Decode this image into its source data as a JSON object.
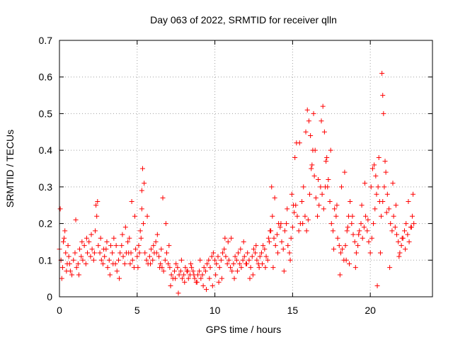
{
  "chart_data": {
    "type": "scatter",
    "title": "Day 063 of 2022, SRMTID for receiver qlln",
    "xlabel": "GPS time / hours",
    "ylabel": "SRMTID / TECUs",
    "xlim": [
      0,
      24
    ],
    "ylim": [
      0,
      0.7
    ],
    "x_ticks": [
      0,
      5,
      10,
      15,
      20
    ],
    "y_ticks": [
      0,
      0.1,
      0.2,
      0.3,
      0.4,
      0.5,
      0.6,
      0.7
    ],
    "x_tick_labels": [
      "0",
      "5",
      "10",
      "15",
      "20"
    ],
    "y_tick_labels": [
      "0",
      "0.1",
      "0.2",
      "0.3",
      "0.4",
      "0.5",
      "0.6",
      "0.7"
    ],
    "grid": true,
    "marker": "+",
    "series_color": "#ff0000",
    "series": [
      {
        "name": "SRMTID",
        "x": [
          0.0,
          0.1,
          0.2,
          0.3,
          0.4,
          0.5,
          0.6,
          0.7,
          0.8,
          0.9,
          1.0,
          1.1,
          1.2,
          1.3,
          1.4,
          1.5,
          1.6,
          1.7,
          1.8,
          1.9,
          2.0,
          2.1,
          2.2,
          2.3,
          2.4,
          2.5,
          2.6,
          2.7,
          2.8,
          2.9,
          3.0,
          3.1,
          3.2,
          3.3,
          3.4,
          3.5,
          3.6,
          3.7,
          3.8,
          3.9,
          4.0,
          4.1,
          4.2,
          4.3,
          4.4,
          4.5,
          4.6,
          4.7,
          4.8,
          4.9,
          5.0,
          5.1,
          5.2,
          5.3,
          5.4,
          5.5,
          5.6,
          5.7,
          5.8,
          5.9,
          6.0,
          6.1,
          6.2,
          6.3,
          6.4,
          6.5,
          6.6,
          6.7,
          6.8,
          6.9,
          7.0,
          7.1,
          7.2,
          7.3,
          7.4,
          7.5,
          7.6,
          7.7,
          7.8,
          7.9,
          8.0,
          8.1,
          8.2,
          8.3,
          8.4,
          8.5,
          8.6,
          8.7,
          8.8,
          8.9,
          9.0,
          9.1,
          9.2,
          9.3,
          9.4,
          9.5,
          9.6,
          9.7,
          9.8,
          9.9,
          10.0,
          10.1,
          10.2,
          10.3,
          10.4,
          10.5,
          10.6,
          10.7,
          10.8,
          10.9,
          11.0,
          11.1,
          11.2,
          11.3,
          11.4,
          11.5,
          11.6,
          11.7,
          11.8,
          11.9,
          12.0,
          12.1,
          12.2,
          12.3,
          12.4,
          12.5,
          12.6,
          12.7,
          12.8,
          12.9,
          13.0,
          13.1,
          13.2,
          13.3,
          13.4,
          13.5,
          13.6,
          13.7,
          13.8,
          13.9,
          14.0,
          14.1,
          14.2,
          14.3,
          14.4,
          14.5,
          14.6,
          14.7,
          14.8,
          14.9,
          15.0,
          15.1,
          15.2,
          15.3,
          15.4,
          15.5,
          15.6,
          15.7,
          15.8,
          15.9,
          16.0,
          16.1,
          16.2,
          16.3,
          16.4,
          16.5,
          16.6,
          16.7,
          16.8,
          16.9,
          17.0,
          17.1,
          17.2,
          17.3,
          17.4,
          17.5,
          17.6,
          17.7,
          17.8,
          17.9,
          18.0,
          18.1,
          18.2,
          18.3,
          18.4,
          18.5,
          18.6,
          18.7,
          18.8,
          18.9,
          19.0,
          19.1,
          19.2,
          19.3,
          19.4,
          19.5,
          19.6,
          19.7,
          19.8,
          19.9,
          20.0,
          20.1,
          20.2,
          20.3,
          20.4,
          20.5,
          20.6,
          20.7,
          20.8,
          20.9,
          21.0,
          21.1,
          21.2,
          21.3,
          21.4,
          21.5,
          21.6,
          21.7,
          21.8,
          21.9,
          22.0,
          22.1,
          22.2,
          22.3,
          22.4,
          22.5,
          22.6,
          22.7,
          22.8,
          0.05,
          0.15,
          0.25,
          0.35,
          0.45,
          0.55,
          0.65,
          1.05,
          1.25,
          1.45,
          1.75,
          2.05,
          2.25,
          2.35,
          2.45,
          2.65,
          2.85,
          3.05,
          3.25,
          3.45,
          3.65,
          3.85,
          4.05,
          4.25,
          4.45,
          4.55,
          4.65,
          4.85,
          5.05,
          5.15,
          5.25,
          5.3,
          5.35,
          5.45,
          5.65,
          5.85,
          6.05,
          6.25,
          6.45,
          6.55,
          6.65,
          6.85,
          7.05,
          7.15,
          7.45,
          7.65,
          7.85,
          8.05,
          8.25,
          8.45,
          8.65,
          8.85,
          9.05,
          9.25,
          9.45,
          9.65,
          9.85,
          10.05,
          10.25,
          10.45,
          10.65,
          10.85,
          11.05,
          11.25,
          11.45,
          11.65,
          11.85,
          12.05,
          12.25,
          12.45,
          12.65,
          12.85,
          13.05,
          13.25,
          13.45,
          13.55,
          13.65,
          13.75,
          13.85,
          14.05,
          14.25,
          14.45,
          14.65,
          14.85,
          14.95,
          15.05,
          15.15,
          15.25,
          15.45,
          15.65,
          15.85,
          15.95,
          16.05,
          16.15,
          16.25,
          16.35,
          16.45,
          16.65,
          16.85,
          16.95,
          17.05,
          17.15,
          17.25,
          17.45,
          17.65,
          17.85,
          18.05,
          18.15,
          18.35,
          18.45,
          18.55,
          18.65,
          18.85,
          19.05,
          19.25,
          19.45,
          19.65,
          19.85,
          20.05,
          20.15,
          20.25,
          20.35,
          20.45,
          20.55,
          20.65,
          20.75,
          20.8,
          20.85,
          20.95,
          21.05,
          21.25,
          21.45,
          21.65,
          21.85,
          22.05,
          22.25,
          22.45,
          22.65,
          22.75
        ],
        "y": [
          0.13,
          0.1,
          0.08,
          0.16,
          0.12,
          0.09,
          0.11,
          0.07,
          0.06,
          0.1,
          0.12,
          0.08,
          0.09,
          0.13,
          0.11,
          0.1,
          0.14,
          0.09,
          0.12,
          0.15,
          0.11,
          0.13,
          0.1,
          0.18,
          0.22,
          0.14,
          0.12,
          0.1,
          0.09,
          0.11,
          0.13,
          0.08,
          0.1,
          0.14,
          0.12,
          0.16,
          0.09,
          0.07,
          0.1,
          0.12,
          0.14,
          0.11,
          0.09,
          0.12,
          0.15,
          0.16,
          0.12,
          0.1,
          0.08,
          0.13,
          0.11,
          0.14,
          0.18,
          0.24,
          0.2,
          0.12,
          0.1,
          0.09,
          0.11,
          0.13,
          0.1,
          0.12,
          0.15,
          0.17,
          0.11,
          0.09,
          0.08,
          0.07,
          0.1,
          0.12,
          0.09,
          0.08,
          0.06,
          0.05,
          0.07,
          0.09,
          0.08,
          0.06,
          0.07,
          0.05,
          0.06,
          0.08,
          0.07,
          0.05,
          0.06,
          0.08,
          0.07,
          0.05,
          0.04,
          0.06,
          0.07,
          0.05,
          0.06,
          0.08,
          0.07,
          0.09,
          0.1,
          0.08,
          0.11,
          0.12,
          0.1,
          0.09,
          0.11,
          0.08,
          0.1,
          0.12,
          0.13,
          0.11,
          0.09,
          0.1,
          0.08,
          0.07,
          0.09,
          0.11,
          0.1,
          0.12,
          0.09,
          0.08,
          0.1,
          0.11,
          0.09,
          0.12,
          0.1,
          0.08,
          0.11,
          0.13,
          0.12,
          0.1,
          0.09,
          0.11,
          0.12,
          0.14,
          0.13,
          0.11,
          0.1,
          0.15,
          0.18,
          0.22,
          0.16,
          0.14,
          0.17,
          0.2,
          0.19,
          0.15,
          0.13,
          0.18,
          0.2,
          0.14,
          0.12,
          0.16,
          0.19,
          0.23,
          0.25,
          0.22,
          0.18,
          0.2,
          0.26,
          0.3,
          0.22,
          0.18,
          0.21,
          0.28,
          0.35,
          0.4,
          0.33,
          0.27,
          0.22,
          0.25,
          0.3,
          0.28,
          0.24,
          0.3,
          0.38,
          0.32,
          0.26,
          0.2,
          0.18,
          0.24,
          0.22,
          0.16,
          0.14,
          0.12,
          0.13,
          0.1,
          0.14,
          0.18,
          0.22,
          0.26,
          0.2,
          0.17,
          0.15,
          0.12,
          0.14,
          0.18,
          0.2,
          0.16,
          0.19,
          0.22,
          0.18,
          0.15,
          0.12,
          0.16,
          0.2,
          0.24,
          0.28,
          0.3,
          0.26,
          0.22,
          0.26,
          0.3,
          0.34,
          0.28,
          0.24,
          0.2,
          0.18,
          0.22,
          0.19,
          0.17,
          0.15,
          0.12,
          0.14,
          0.16,
          0.18,
          0.2,
          0.17,
          0.15,
          0.19,
          0.22,
          0.2,
          0.24,
          0.05,
          0.15,
          0.18,
          0.07,
          0.14,
          0.09,
          0.21,
          0.06,
          0.15,
          0.16,
          0.17,
          0.12,
          0.25,
          0.26,
          0.16,
          0.13,
          0.15,
          0.06,
          0.09,
          0.14,
          0.05,
          0.17,
          0.19,
          0.12,
          0.09,
          0.26,
          0.22,
          0.08,
          0.12,
          0.16,
          0.29,
          0.35,
          0.31,
          0.22,
          0.09,
          0.14,
          0.12,
          0.08,
          0.13,
          0.27,
          0.2,
          0.14,
          0.03,
          0.05,
          0.01,
          0.1,
          0.04,
          0.07,
          0.09,
          0.06,
          0.04,
          0.1,
          0.03,
          0.02,
          0.05,
          0.03,
          0.06,
          0.04,
          0.05,
          0.16,
          0.15,
          0.16,
          0.05,
          0.07,
          0.13,
          0.15,
          0.09,
          0.05,
          0.06,
          0.14,
          0.08,
          0.09,
          0.08,
          0.16,
          0.18,
          0.3,
          0.08,
          0.27,
          0.12,
          0.2,
          0.07,
          0.24,
          0.1,
          0.28,
          0.25,
          0.38,
          0.42,
          0.42,
          0.2,
          0.45,
          0.51,
          0.48,
          0.44,
          0.36,
          0.5,
          0.4,
          0.32,
          0.48,
          0.52,
          0.45,
          0.37,
          0.3,
          0.4,
          0.13,
          0.25,
          0.06,
          0.3,
          0.34,
          0.1,
          0.19,
          0.09,
          0.22,
          0.08,
          0.17,
          0.25,
          0.31,
          0.21,
          0.3,
          0.35,
          0.36,
          0.33,
          0.03,
          0.38,
          0.12,
          0.61,
          0.55,
          0.5,
          0.37,
          0.23,
          0.08,
          0.31,
          0.25,
          0.11,
          0.16,
          0.13,
          0.26,
          0.19,
          0.28
        ]
      }
    ]
  }
}
